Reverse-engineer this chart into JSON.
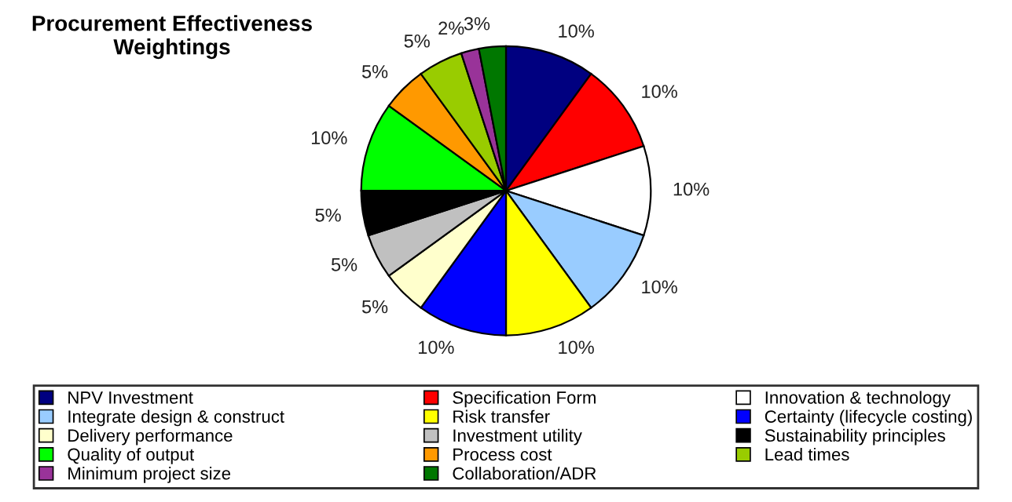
{
  "chart_data": {
    "type": "pie",
    "title": "Procurement Effectiveness\nWeightings",
    "categories": [
      "NPV Investment",
      "Specification Form",
      "Innovation & technology",
      "Integrate design & construct",
      "Risk transfer",
      "Certainty (lifecycle costing)",
      "Delivery performance",
      "Investment utility",
      "Sustainability principles",
      "Quality of output",
      "Process cost",
      "Lead times",
      "Minimum project size",
      "Collaboration/ADR"
    ],
    "values": [
      10,
      10,
      10,
      10,
      10,
      10,
      5,
      5,
      5,
      10,
      5,
      5,
      2,
      3
    ],
    "colors": [
      "#000080",
      "#ff0000",
      "#ffffff",
      "#99ccff",
      "#ffff00",
      "#0000ff",
      "#ffffcc",
      "#c0c0c0",
      "#000000",
      "#00ff00",
      "#ff9900",
      "#99cc00",
      "#993399",
      "#007700"
    ],
    "value_labels": [
      "10%",
      "10%",
      "10%",
      "10%",
      "10%",
      "10%",
      "5%",
      "5%",
      "5%",
      "10%",
      "5%",
      "5%",
      "2%",
      "3%"
    ],
    "legend": "bottom"
  }
}
